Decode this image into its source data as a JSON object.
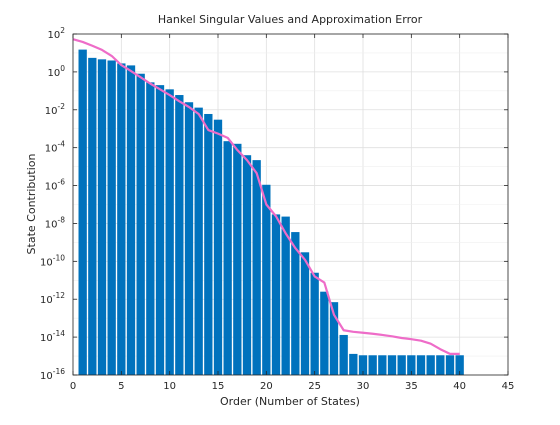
{
  "chart_data": {
    "type": "bar",
    "title": "Hankel Singular Values and Approximation Error",
    "xlabel": "Order (Number of States)",
    "ylabel": "State Contribution",
    "xlim": [
      0,
      45
    ],
    "ylim_exponents": [
      -16,
      2
    ],
    "yscale": "log",
    "grid": true,
    "x_ticks": [
      "0",
      "5",
      "10",
      "15",
      "20",
      "25",
      "30",
      "35",
      "40",
      "45"
    ],
    "y_ticks": [
      {
        "base": "10",
        "exp": "-16"
      },
      {
        "base": "10",
        "exp": "-14"
      },
      {
        "base": "10",
        "exp": "-12"
      },
      {
        "base": "10",
        "exp": "-10"
      },
      {
        "base": "10",
        "exp": "-8"
      },
      {
        "base": "10",
        "exp": "-6"
      },
      {
        "base": "10",
        "exp": "-4"
      },
      {
        "base": "10",
        "exp": "-2"
      },
      {
        "base": "10",
        "exp": "0"
      },
      {
        "base": "10",
        "exp": "2"
      }
    ],
    "bar_color": "#0072BD",
    "line_color": "#EE6CC8",
    "bars": {
      "x": [
        1,
        2,
        3,
        4,
        5,
        6,
        7,
        8,
        9,
        10,
        11,
        12,
        13,
        14,
        15,
        16,
        17,
        18,
        19,
        20,
        21,
        22,
        23,
        24,
        25,
        26,
        27,
        28,
        29,
        30,
        31,
        32,
        33,
        34,
        35,
        36,
        37,
        38,
        39,
        40
      ],
      "values": [
        15,
        5.5,
        4.6,
        4,
        2.8,
        2.2,
        0.8,
        0.28,
        0.2,
        0.12,
        0.06,
        0.025,
        0.013,
        0.006,
        0.003,
        0.00022,
        0.00016,
        4e-05,
        2.2e-05,
        1.1e-06,
        3e-08,
        2.3e-08,
        3.5e-09,
        3e-10,
        2.5e-11,
        2.5e-12,
        7e-13,
        1.3e-14,
        1.3e-15,
        1.1e-15,
        1.1e-15,
        1.1e-15,
        1.1e-15,
        1.1e-15,
        1.1e-15,
        1.1e-15,
        1.1e-15,
        1.1e-15,
        1.1e-15,
        1.1e-15
      ]
    },
    "error_line": {
      "x": [
        0,
        1,
        2,
        3,
        4,
        5,
        6,
        7,
        8,
        9,
        10,
        11,
        12,
        13,
        14,
        15,
        16,
        17,
        18,
        19,
        20,
        21,
        22,
        23,
        24,
        25,
        26,
        27,
        28,
        29,
        30,
        31,
        32,
        33,
        34,
        35,
        36,
        37,
        38,
        39,
        40
      ],
      "values": [
        53,
        38,
        24,
        14.5,
        7,
        2.3,
        1.1,
        0.52,
        0.24,
        0.12,
        0.06,
        0.028,
        0.014,
        0.006,
        0.00085,
        0.00055,
        0.00033,
        7.5e-05,
        2.2e-05,
        4.5e-06,
        1e-07,
        2.4e-08,
        3e-09,
        5e-10,
        1.2e-10,
        1.6e-11,
        7.6e-12,
        1.5e-13,
        2.3e-14,
        1.9e-14,
        1.7e-14,
        1.5e-14,
        1.3e-14,
        1.1e-14,
        9e-15,
        7.8e-15,
        6.5e-15,
        4.5e-15,
        2.3e-15,
        1.3e-15,
        1.3e-15
      ]
    }
  }
}
